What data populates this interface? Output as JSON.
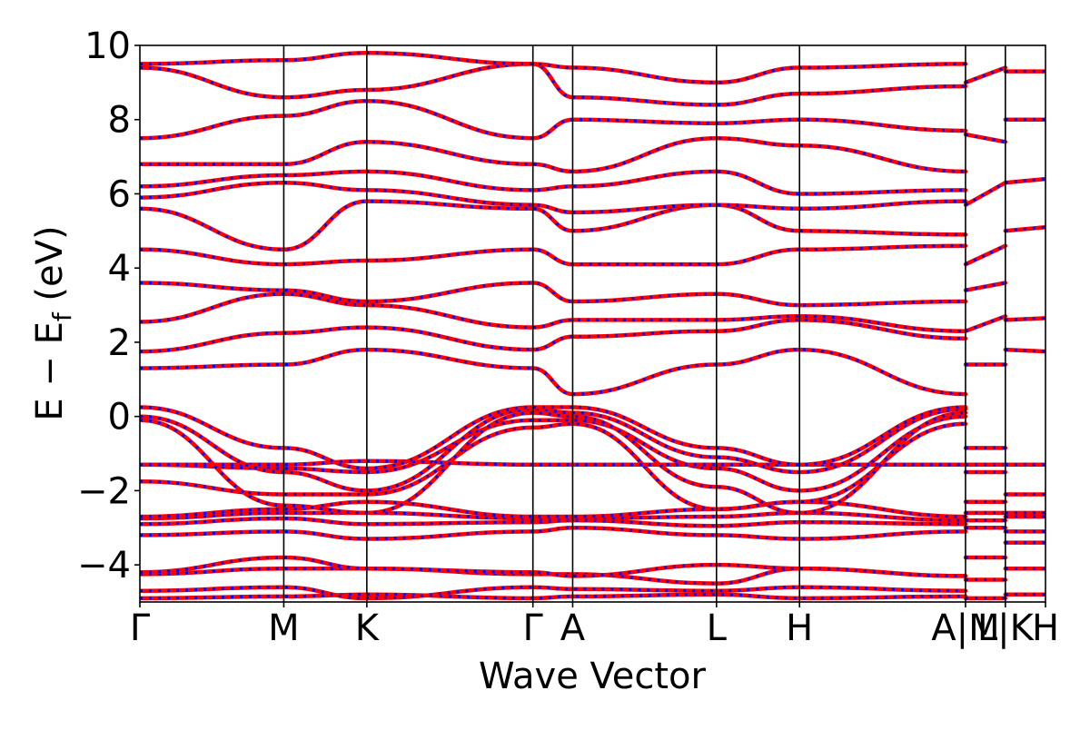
{
  "chart_data": {
    "type": "line",
    "xlabel": "Wave Vector",
    "ylabel": "E − E",
    "ylabel_sub": "f",
    "ylabel_unit": " (eV)",
    "ylim": [
      -5,
      10
    ],
    "yticks": [
      -4,
      -2,
      0,
      2,
      4,
      6,
      8,
      10
    ],
    "ytick_labels": [
      "−4",
      "−2",
      "0",
      "2",
      "4",
      "6",
      "8",
      "10"
    ],
    "xlim": [
      0,
      1
    ],
    "grid": false,
    "legend": "none",
    "high_symmetry_points": [
      {
        "label": "Γ",
        "x": 0.0
      },
      {
        "label": "M",
        "x": 0.1589
      },
      {
        "label": "K",
        "x": 0.2506
      },
      {
        "label": "Γ",
        "x": 0.434
      },
      {
        "label": "A",
        "x": 0.4779
      },
      {
        "label": "L",
        "x": 0.6367
      },
      {
        "label": "H",
        "x": 0.7284
      },
      {
        "label": "A|M",
        "x": 0.9117
      },
      {
        "label": "L|K",
        "x": 0.9557
      },
      {
        "label": "H",
        "x": 1.0
      }
    ],
    "series_styles": [
      {
        "color": "#ff0000",
        "style": "solid"
      },
      {
        "color": "#0000ff",
        "style": "dotted"
      }
    ],
    "bands": [
      {
        "x": [
          0,
          0.1589,
          0.2506,
          0.434,
          0.4779,
          0.6367,
          0.7284,
          0.9117
        ],
        "y": [
          -4.9,
          -4.85,
          -4.8,
          -4.9,
          -4.85,
          -4.8,
          -4.9,
          -4.85
        ]
      },
      {
        "x": [
          0,
          0.1589,
          0.2506,
          0.434,
          0.4779,
          0.6367,
          0.7284,
          0.9117
        ],
        "y": [
          -4.7,
          -4.6,
          -4.9,
          -4.6,
          -4.65,
          -4.7,
          -4.6,
          -4.7
        ]
      },
      {
        "x": [
          0,
          0.1589,
          0.2506,
          0.434,
          0.4779,
          0.6367,
          0.7284,
          0.9117
        ],
        "y": [
          -4.25,
          -4.1,
          -4.1,
          -4.25,
          -4.25,
          -4.5,
          -4.1,
          -4.3
        ]
      },
      {
        "x": [
          0,
          0.1589,
          0.2506,
          0.434,
          0.4779,
          0.6367,
          0.7284,
          0.9117
        ],
        "y": [
          -4.2,
          -3.8,
          -4.1,
          -4.2,
          -4.3,
          -4.0,
          -4.1,
          -4.3
        ]
      },
      {
        "x": [
          0,
          0.1589,
          0.2506,
          0.434,
          0.4779,
          0.6367,
          0.7284,
          0.9117
        ],
        "y": [
          -3.2,
          -3.1,
          -3.3,
          -3.1,
          -3.0,
          -3.2,
          -3.3,
          -3.1
        ]
      },
      {
        "x": [
          0,
          0.1589,
          0.2506,
          0.434,
          0.4779,
          0.6367,
          0.7284,
          0.9117
        ],
        "y": [
          -2.9,
          -2.75,
          -2.9,
          -2.85,
          -2.8,
          -2.95,
          -2.85,
          -2.9
        ]
      },
      {
        "x": [
          0,
          0.1589,
          0.2506,
          0.434,
          0.4779,
          0.6367,
          0.7284,
          0.9117
        ],
        "y": [
          -2.75,
          -2.6,
          -2.6,
          -2.75,
          -2.75,
          -2.7,
          -2.6,
          -2.8
        ]
      },
      {
        "x": [
          0,
          0.1589,
          0.2506,
          0.434,
          0.4779,
          0.6367,
          0.7284,
          0.9117
        ],
        "y": [
          -2.7,
          -2.5,
          -2.3,
          -2.7,
          -2.7,
          -2.5,
          -2.3,
          -2.7
        ]
      },
      {
        "x": [
          0,
          0.1589,
          0.2506,
          0.434,
          0.4779,
          0.6367,
          0.7284,
          0.9117
        ],
        "y": [
          -1.75,
          -2.1,
          -2.1,
          -0.3,
          -0.2,
          -2.5,
          -2.3,
          -0.2
        ]
      },
      {
        "x": [
          0,
          0.1589,
          0.2506,
          0.434,
          0.4779,
          0.6367,
          0.7284,
          0.9117
        ],
        "y": [
          -1.3,
          -1.4,
          -1.5,
          -0.1,
          -0.1,
          -1.4,
          -2.0,
          0.0
        ]
      },
      {
        "x": [
          0,
          0.1589,
          0.2506,
          0.434,
          0.4779,
          0.6367,
          0.7284,
          0.9117
        ],
        "y": [
          -1.3,
          -1.3,
          -1.2,
          -1.3,
          -1.3,
          -1.3,
          -1.3,
          -1.3
        ]
      },
      {
        "x": [
          0,
          0.1589,
          0.2506,
          0.434,
          0.4779,
          0.6367,
          0.7284,
          0.9117
        ],
        "y": [
          -0.1,
          -2.4,
          -2.6,
          0.1,
          0.0,
          -1.9,
          -2.6,
          0.1
        ]
      },
      {
        "x": [
          0,
          0.1589,
          0.2506,
          0.434,
          0.4779,
          0.6367,
          0.7284,
          0.9117
        ],
        "y": [
          0.0,
          -1.5,
          -2.0,
          0.2,
          0.1,
          -1.1,
          -1.5,
          0.2
        ]
      },
      {
        "x": [
          0,
          0.1589,
          0.2506,
          0.434,
          0.4779,
          0.6367,
          0.7284,
          0.9117
        ],
        "y": [
          0.25,
          -0.85,
          -1.4,
          0.25,
          0.25,
          -0.85,
          -1.3,
          0.25
        ]
      },
      {
        "x": [
          0,
          0.1589,
          0.2506,
          0.434,
          0.4779,
          0.6367,
          0.7284,
          0.9117
        ],
        "y": [
          1.3,
          1.4,
          1.8,
          1.3,
          0.6,
          1.4,
          1.8,
          0.6
        ]
      },
      {
        "x": [
          0,
          0.1589,
          0.2506,
          0.434,
          0.4779,
          0.6367,
          0.7284,
          0.9117
        ],
        "y": [
          1.75,
          2.25,
          2.4,
          1.8,
          2.15,
          2.3,
          2.6,
          2.1
        ]
      },
      {
        "x": [
          0,
          0.1589,
          0.2506,
          0.434,
          0.4779,
          0.6367,
          0.7284,
          0.9117
        ],
        "y": [
          2.55,
          3.3,
          3.0,
          2.4,
          2.6,
          2.6,
          2.7,
          2.3
        ]
      },
      {
        "x": [
          0,
          0.1589,
          0.2506,
          0.434,
          0.4779,
          0.6367,
          0.7284,
          0.9117
        ],
        "y": [
          3.6,
          3.4,
          3.1,
          3.6,
          3.1,
          3.3,
          3.0,
          3.1
        ]
      },
      {
        "x": [
          0,
          0.1589,
          0.2506,
          0.434,
          0.4779,
          0.6367,
          0.7284,
          0.9117
        ],
        "y": [
          4.5,
          4.1,
          4.2,
          4.5,
          4.1,
          4.1,
          4.5,
          4.6
        ]
      },
      {
        "x": [
          0,
          0.1589,
          0.2506,
          0.434,
          0.4779,
          0.6367,
          0.7284,
          0.9117
        ],
        "y": [
          5.6,
          4.5,
          5.8,
          5.6,
          5.0,
          5.7,
          5.0,
          4.9
        ]
      },
      {
        "x": [
          0,
          0.1589,
          0.2506,
          0.434,
          0.4779,
          0.6367,
          0.7284,
          0.9117
        ],
        "y": [
          5.9,
          6.3,
          6.1,
          5.7,
          5.5,
          5.7,
          5.6,
          5.8
        ]
      },
      {
        "x": [
          0,
          0.1589,
          0.2506,
          0.434,
          0.4779,
          0.6367,
          0.7284,
          0.9117
        ],
        "y": [
          6.2,
          6.5,
          6.6,
          6.1,
          6.2,
          6.6,
          6.0,
          6.1
        ]
      },
      {
        "x": [
          0,
          0.1589,
          0.2506,
          0.434,
          0.4779,
          0.6367,
          0.7284,
          0.9117
        ],
        "y": [
          6.8,
          6.8,
          7.4,
          6.8,
          6.6,
          7.5,
          7.3,
          6.6
        ]
      },
      {
        "x": [
          0,
          0.1589,
          0.2506,
          0.434,
          0.4779,
          0.6367,
          0.7284,
          0.9117
        ],
        "y": [
          7.5,
          8.1,
          8.5,
          7.5,
          8.0,
          7.9,
          8.0,
          7.7
        ]
      },
      {
        "x": [
          0,
          0.1589,
          0.2506,
          0.434,
          0.4779,
          0.6367,
          0.7284,
          0.9117
        ],
        "y": [
          9.4,
          8.6,
          8.8,
          9.5,
          8.6,
          8.4,
          8.7,
          8.9
        ]
      },
      {
        "x": [
          0,
          0.1589,
          0.2506,
          0.434,
          0.4779,
          0.6367,
          0.7284,
          0.9117
        ],
        "y": [
          9.5,
          9.6,
          9.8,
          9.5,
          9.4,
          9.0,
          9.4,
          9.5
        ]
      },
      {
        "x": [
          0.9117,
          0.9557
        ],
        "y": [
          -4.9,
          -4.9
        ]
      },
      {
        "x": [
          0.9117,
          0.9557
        ],
        "y": [
          -4.4,
          -4.4
        ]
      },
      {
        "x": [
          0.9117,
          0.9557
        ],
        "y": [
          -3.8,
          -3.8
        ]
      },
      {
        "x": [
          0.9117,
          0.9557
        ],
        "y": [
          -3.0,
          -3.0
        ]
      },
      {
        "x": [
          0.9117,
          0.9557
        ],
        "y": [
          -2.8,
          -2.8
        ]
      },
      {
        "x": [
          0.9117,
          0.9557
        ],
        "y": [
          -2.6,
          -2.6
        ]
      },
      {
        "x": [
          0.9117,
          0.9557
        ],
        "y": [
          -2.3,
          -2.3
        ]
      },
      {
        "x": [
          0.9117,
          0.9557
        ],
        "y": [
          -1.5,
          -1.5
        ]
      },
      {
        "x": [
          0.9117,
          0.9557
        ],
        "y": [
          -1.3,
          -1.3
        ]
      },
      {
        "x": [
          0.9117,
          0.9557
        ],
        "y": [
          -0.85,
          -0.85
        ]
      },
      {
        "x": [
          0.9117,
          0.9557
        ],
        "y": [
          1.4,
          1.4
        ]
      },
      {
        "x": [
          0.9117,
          0.9557
        ],
        "y": [
          2.3,
          2.7
        ]
      },
      {
        "x": [
          0.9117,
          0.9557
        ],
        "y": [
          3.4,
          3.6
        ]
      },
      {
        "x": [
          0.9117,
          0.9557
        ],
        "y": [
          4.1,
          4.6
        ]
      },
      {
        "x": [
          0.9117,
          0.9557
        ],
        "y": [
          5.7,
          6.3
        ]
      },
      {
        "x": [
          0.9117,
          0.9557
        ],
        "y": [
          7.6,
          7.4
        ]
      },
      {
        "x": [
          0.9117,
          0.9557
        ],
        "y": [
          9.0,
          9.4
        ]
      },
      {
        "x": [
          0.9557,
          1.0
        ],
        "y": [
          -4.8,
          -4.8
        ]
      },
      {
        "x": [
          0.9557,
          1.0
        ],
        "y": [
          -4.1,
          -4.1
        ]
      },
      {
        "x": [
          0.9557,
          1.0
        ],
        "y": [
          -3.4,
          -3.4
        ]
      },
      {
        "x": [
          0.9557,
          1.0
        ],
        "y": [
          -3.1,
          -3.1
        ]
      },
      {
        "x": [
          0.9557,
          1.0
        ],
        "y": [
          -2.7,
          -2.7
        ]
      },
      {
        "x": [
          0.9557,
          1.0
        ],
        "y": [
          -2.6,
          -2.6
        ]
      },
      {
        "x": [
          0.9557,
          1.0
        ],
        "y": [
          -2.1,
          -2.1
        ]
      },
      {
        "x": [
          0.9557,
          1.0
        ],
        "y": [
          -1.3,
          -1.3
        ]
      },
      {
        "x": [
          0.9557,
          1.0
        ],
        "y": [
          1.8,
          1.75
        ]
      },
      {
        "x": [
          0.9557,
          1.0
        ],
        "y": [
          2.6,
          2.65
        ]
      },
      {
        "x": [
          0.9557,
          1.0
        ],
        "y": [
          5.0,
          5.1
        ]
      },
      {
        "x": [
          0.9557,
          1.0
        ],
        "y": [
          6.3,
          6.4
        ]
      },
      {
        "x": [
          0.9557,
          1.0
        ],
        "y": [
          8.0,
          8.0
        ]
      },
      {
        "x": [
          0.9557,
          1.0
        ],
        "y": [
          9.3,
          9.3
        ]
      }
    ]
  }
}
